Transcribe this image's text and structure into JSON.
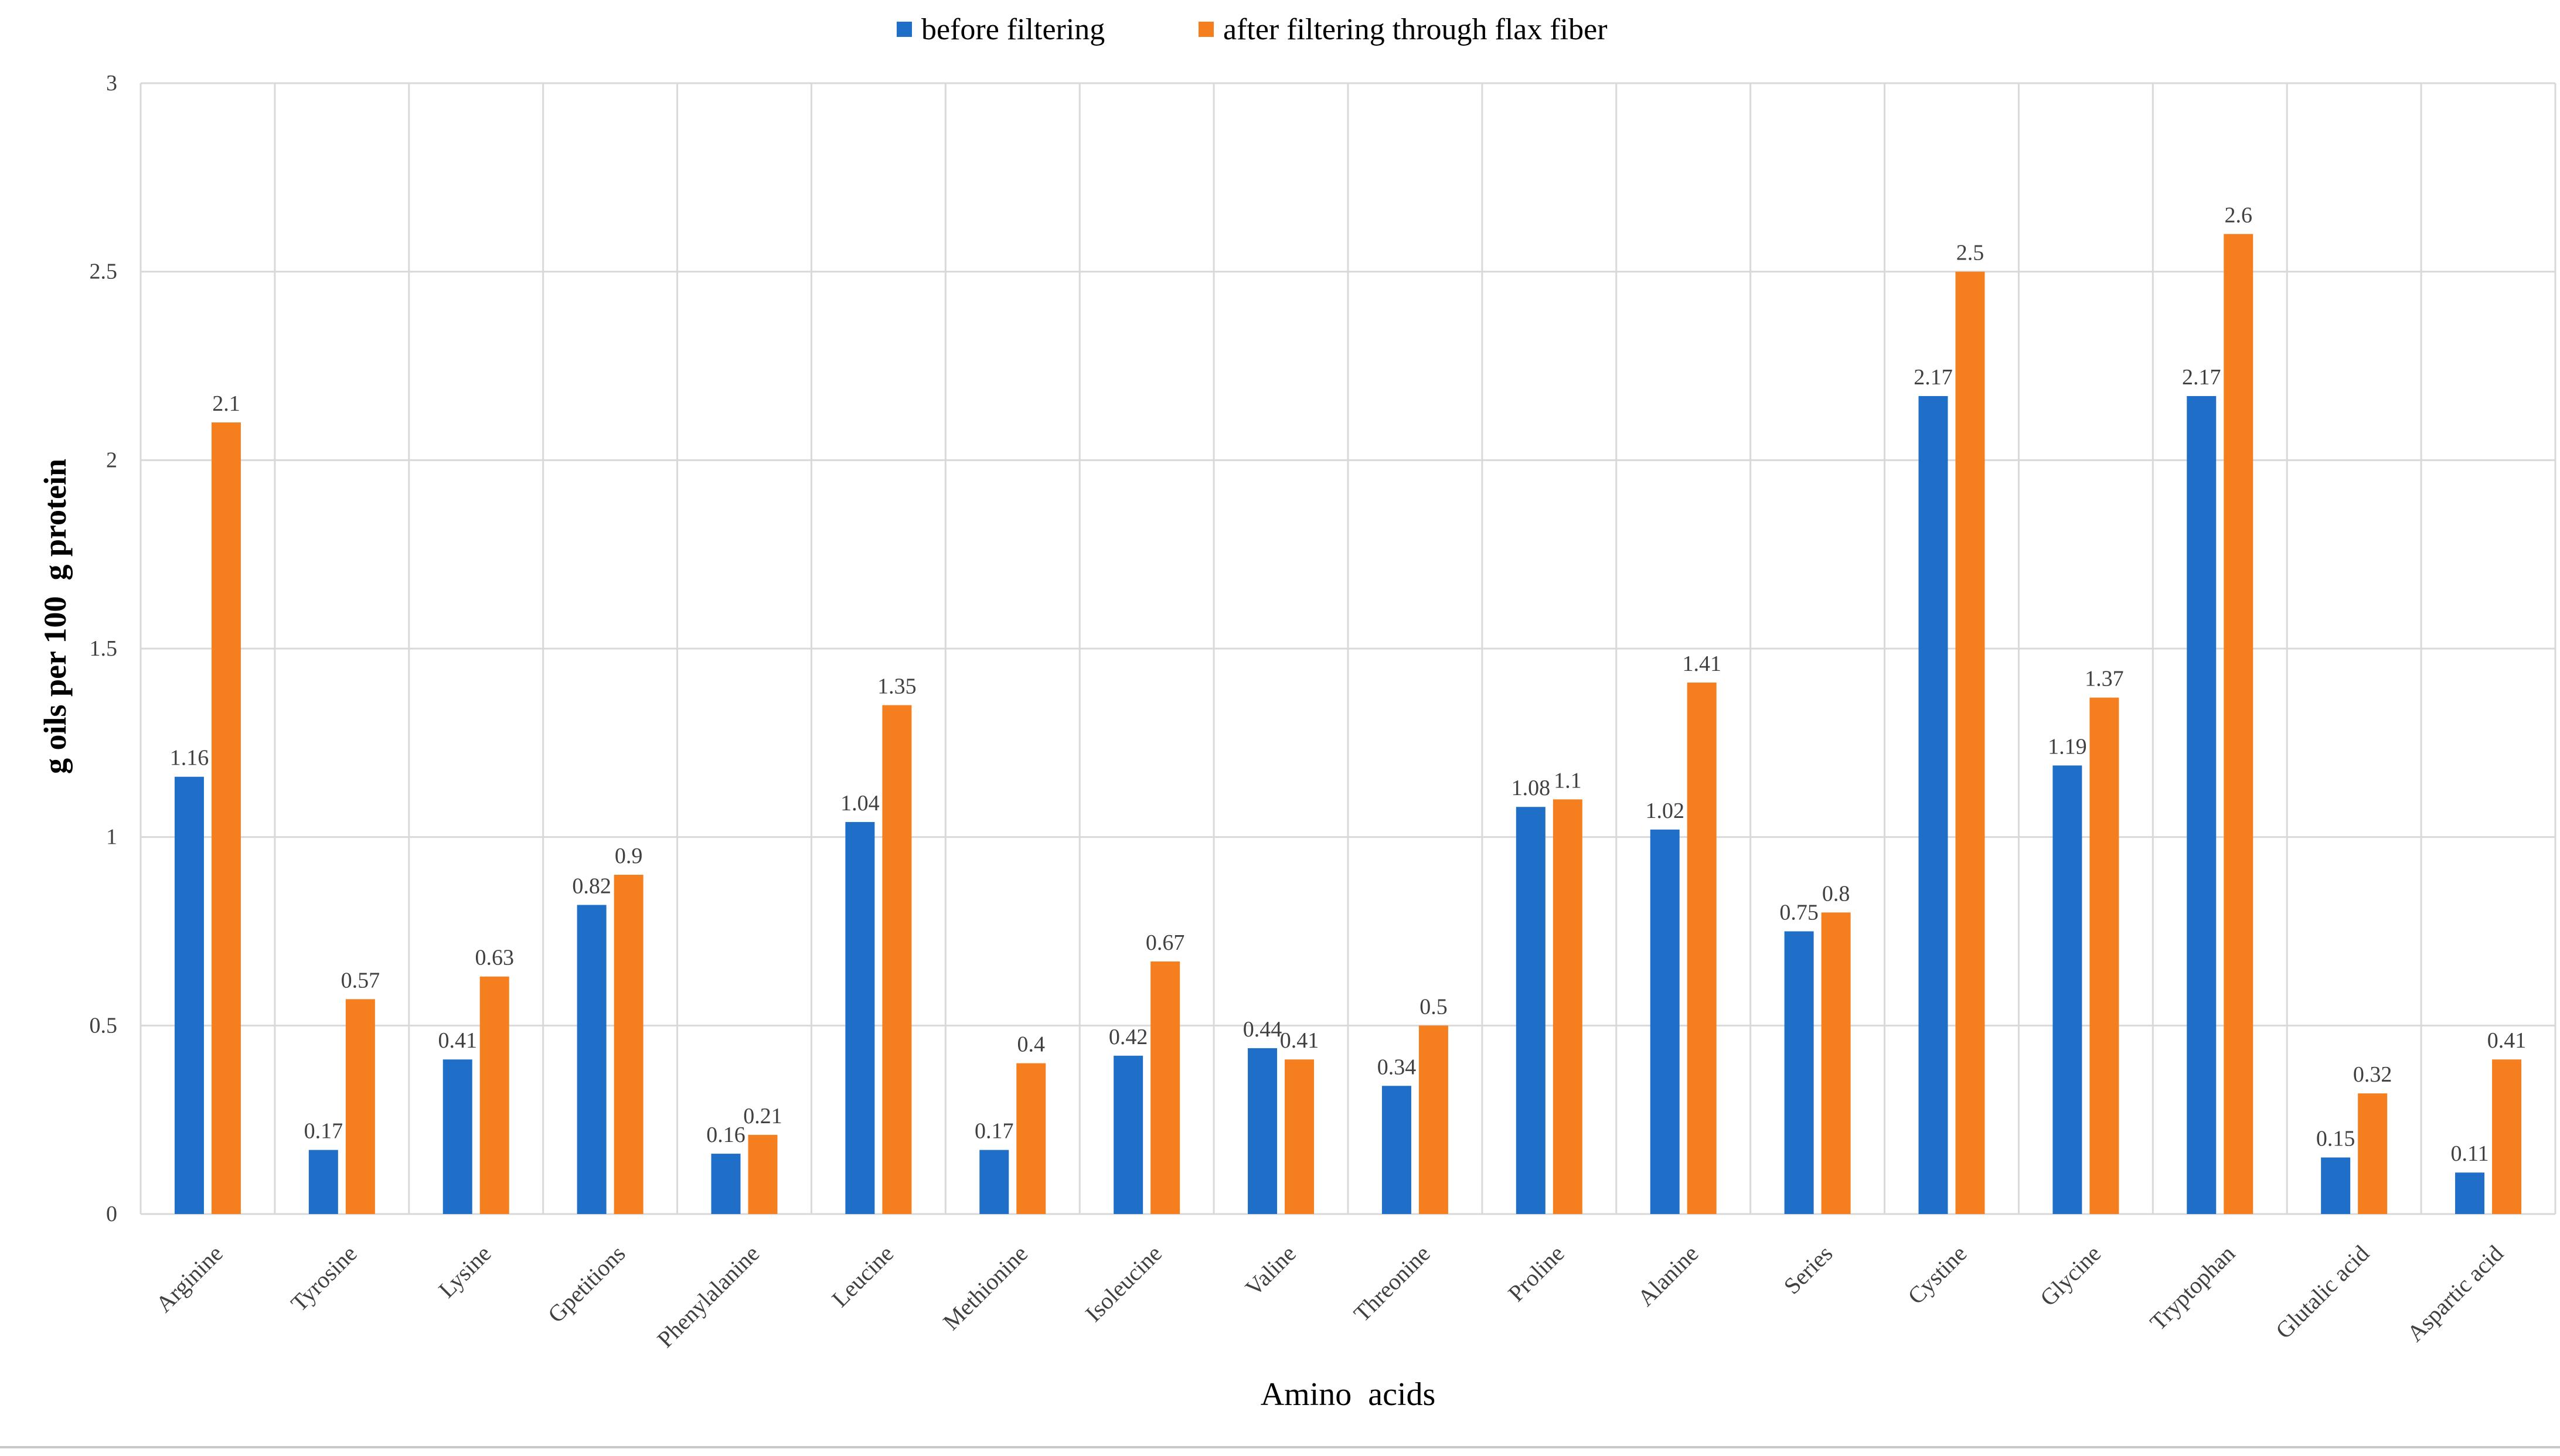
{
  "chart_data": {
    "type": "bar",
    "title": "",
    "xlabel": "Amino  acids",
    "ylabel": "g oils per 100  g protein",
    "ylim": [
      0,
      3
    ],
    "yticks": [
      "0",
      "0.5",
      "1",
      "1.5",
      "2",
      "2.5",
      "3"
    ],
    "ytick_values": [
      0,
      0.5,
      1,
      1.5,
      2,
      2.5,
      3
    ],
    "grid": true,
    "legend_position": "top-center",
    "categories": [
      "Arginine",
      "Tyrosine",
      "Lysine",
      "Gpetitions",
      "Phenylalanine",
      "Leucine",
      "Methionine",
      "Isoleucine",
      "Valine",
      "Threonine",
      "Proline",
      "Alanine",
      "Series",
      "Cystine",
      "Glycine",
      "Tryptophan",
      "Glutalic acid",
      "Aspartic acid"
    ],
    "series": [
      {
        "name": "before filtering",
        "color": "#1f6fc9",
        "values": [
          1.16,
          0.17,
          0.41,
          0.82,
          0.16,
          1.04,
          0.17,
          0.42,
          0.44,
          0.34,
          1.08,
          1.02,
          0.75,
          2.17,
          1.19,
          2.17,
          0.15,
          0.11
        ],
        "labels": [
          "1.16",
          "0.17",
          "0.41",
          "0.82",
          "0.16",
          "1.04",
          "0.17",
          "0.42",
          "0.44",
          "0.34",
          "1.08",
          "1.02",
          "0.75",
          "2.17",
          "1.19",
          "2.17",
          "0.15",
          "0.11"
        ]
      },
      {
        "name": "after filtering through flax fiber",
        "color": "#f57f1f",
        "values": [
          2.1,
          0.57,
          0.63,
          0.9,
          0.21,
          1.35,
          0.4,
          0.67,
          0.41,
          0.5,
          1.1,
          1.41,
          0.8,
          2.5,
          1.37,
          2.6,
          0.32,
          0.41
        ],
        "labels": [
          "2.1",
          "0.57",
          "0.63",
          "0.9",
          "0.21",
          "1.35",
          "0.4",
          "0.67",
          "0.41",
          "0.5",
          "1.1",
          "1.41",
          "0.8",
          "2.5",
          "1.37",
          "2.6",
          "0.32",
          "0.41"
        ]
      }
    ],
    "colors": {
      "grid": "#d9d9d9",
      "text": "#404040",
      "axis_title": "#000000"
    }
  }
}
